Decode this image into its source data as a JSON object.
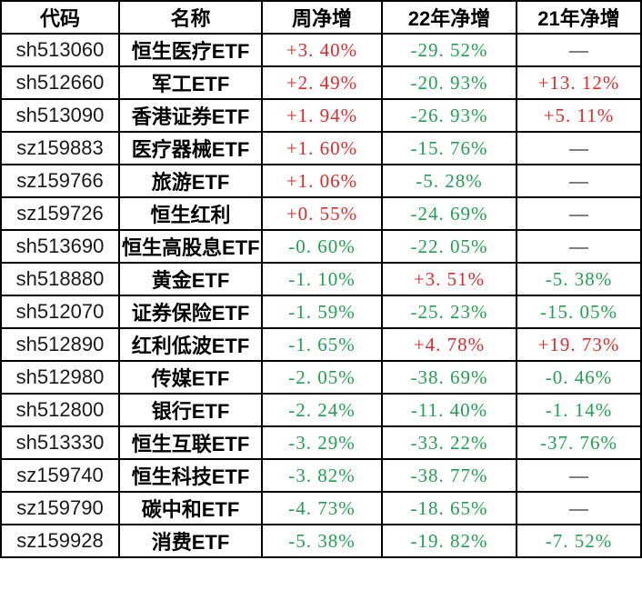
{
  "colors": {
    "up": "#e02a2a",
    "down": "#21a052",
    "neutral": "#000000",
    "border": "#000000"
  },
  "chart_data": {
    "type": "table",
    "columns": [
      "代码",
      "名称",
      "周净增",
      "22年净增",
      "21年净增"
    ],
    "rows": [
      {
        "code": "sh513060",
        "name": "恒生医疗ETF",
        "week": {
          "text": "+3. 40%",
          "dir": "up"
        },
        "y22": {
          "text": "-29. 52%",
          "dir": "down"
        },
        "y21": {
          "text": "—",
          "dir": "na"
        }
      },
      {
        "code": "sh512660",
        "name": "军工ETF",
        "week": {
          "text": "+2. 49%",
          "dir": "up"
        },
        "y22": {
          "text": "-20. 93%",
          "dir": "down"
        },
        "y21": {
          "text": "+13. 12%",
          "dir": "up"
        }
      },
      {
        "code": "sh513090",
        "name": "香港证券ETF",
        "week": {
          "text": "+1. 94%",
          "dir": "up"
        },
        "y22": {
          "text": "-26. 93%",
          "dir": "down"
        },
        "y21": {
          "text": "+5. 11%",
          "dir": "up"
        }
      },
      {
        "code": "sz159883",
        "name": "医疗器械ETF",
        "week": {
          "text": "+1. 60%",
          "dir": "up"
        },
        "y22": {
          "text": "-15. 76%",
          "dir": "down"
        },
        "y21": {
          "text": "—",
          "dir": "na"
        }
      },
      {
        "code": "sz159766",
        "name": "旅游ETF",
        "week": {
          "text": "+1. 06%",
          "dir": "up"
        },
        "y22": {
          "text": "-5. 28%",
          "dir": "down"
        },
        "y21": {
          "text": "—",
          "dir": "na"
        }
      },
      {
        "code": "sz159726",
        "name": "恒生红利",
        "week": {
          "text": "+0. 55%",
          "dir": "up"
        },
        "y22": {
          "text": "-24. 69%",
          "dir": "down"
        },
        "y21": {
          "text": "—",
          "dir": "na"
        }
      },
      {
        "code": "sh513690",
        "name": "恒生高股息ETF",
        "week": {
          "text": "-0. 60%",
          "dir": "down"
        },
        "y22": {
          "text": "-22. 05%",
          "dir": "down"
        },
        "y21": {
          "text": "—",
          "dir": "na"
        }
      },
      {
        "code": "sh518880",
        "name": "黄金ETF",
        "week": {
          "text": "-1. 10%",
          "dir": "down"
        },
        "y22": {
          "text": "+3. 51%",
          "dir": "up"
        },
        "y21": {
          "text": "-5. 38%",
          "dir": "down"
        }
      },
      {
        "code": "sh512070",
        "name": "证券保险ETF",
        "week": {
          "text": "-1. 59%",
          "dir": "down"
        },
        "y22": {
          "text": "-25. 23%",
          "dir": "down"
        },
        "y21": {
          "text": "-15. 05%",
          "dir": "down"
        }
      },
      {
        "code": "sh512890",
        "name": "红利低波ETF",
        "week": {
          "text": "-1. 65%",
          "dir": "down"
        },
        "y22": {
          "text": "+4. 78%",
          "dir": "up"
        },
        "y21": {
          "text": "+19. 73%",
          "dir": "up"
        }
      },
      {
        "code": "sh512980",
        "name": "传媒ETF",
        "week": {
          "text": "-2. 05%",
          "dir": "down"
        },
        "y22": {
          "text": "-38. 69%",
          "dir": "down"
        },
        "y21": {
          "text": "-0. 46%",
          "dir": "down"
        }
      },
      {
        "code": "sh512800",
        "name": "银行ETF",
        "week": {
          "text": "-2. 24%",
          "dir": "down"
        },
        "y22": {
          "text": "-11. 40%",
          "dir": "down"
        },
        "y21": {
          "text": "-1. 14%",
          "dir": "down"
        }
      },
      {
        "code": "sh513330",
        "name": "恒生互联ETF",
        "week": {
          "text": "-3. 29%",
          "dir": "down"
        },
        "y22": {
          "text": "-33. 22%",
          "dir": "down"
        },
        "y21": {
          "text": "-37. 76%",
          "dir": "down"
        }
      },
      {
        "code": "sz159740",
        "name": "恒生科技ETF",
        "week": {
          "text": "-3. 82%",
          "dir": "down"
        },
        "y22": {
          "text": "-38. 77%",
          "dir": "down"
        },
        "y21": {
          "text": "—",
          "dir": "na"
        }
      },
      {
        "code": "sz159790",
        "name": "碳中和ETF",
        "week": {
          "text": "-4. 73%",
          "dir": "down"
        },
        "y22": {
          "text": "-18. 65%",
          "dir": "down"
        },
        "y21": {
          "text": "—",
          "dir": "na"
        }
      },
      {
        "code": "sz159928",
        "name": "消费ETF",
        "week": {
          "text": "-5. 38%",
          "dir": "down"
        },
        "y22": {
          "text": "-19. 82%",
          "dir": "down"
        },
        "y21": {
          "text": "-7. 52%",
          "dir": "down"
        }
      }
    ]
  }
}
